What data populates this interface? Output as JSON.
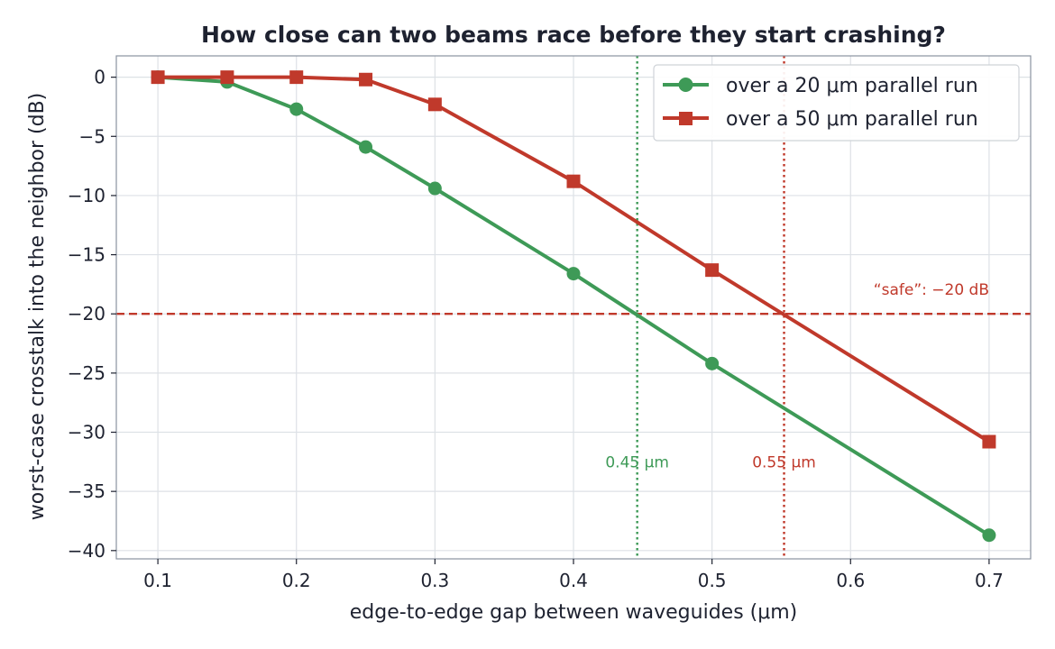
{
  "chart_data": {
    "type": "line",
    "title": "How close can two beams race before they start crashing?",
    "xlabel": "edge-to-edge gap between waveguides  (μm)",
    "ylabel": "worst-case crosstalk into the neighbor  (dB)",
    "xlim": [
      0.07,
      0.73
    ],
    "ylim": [
      -40.7,
      1.8
    ],
    "xticks": [
      0.1,
      0.2,
      0.3,
      0.4,
      0.5,
      0.6,
      0.7
    ],
    "xtick_labels": [
      "0.1",
      "0.2",
      "0.3",
      "0.4",
      "0.5",
      "0.6",
      "0.7"
    ],
    "yticks": [
      0,
      -5,
      -10,
      -15,
      -20,
      -25,
      -30,
      -35,
      -40
    ],
    "ytick_labels": [
      "0",
      "−5",
      "−10",
      "−15",
      "−20",
      "−25",
      "−30",
      "−35",
      "−40"
    ],
    "grid": true,
    "legend_position": "top-right",
    "series": [
      {
        "name": "over a 20 μm parallel run",
        "color": "#3e9a57",
        "marker": "circle",
        "x": [
          0.1,
          0.15,
          0.2,
          0.25,
          0.3,
          0.4,
          0.5,
          0.7
        ],
        "y": [
          0.0,
          -0.4,
          -2.7,
          -5.9,
          -9.4,
          -16.6,
          -24.2,
          -38.7
        ]
      },
      {
        "name": "over a 50 μm parallel run",
        "color": "#c0392b",
        "marker": "square",
        "x": [
          0.1,
          0.15,
          0.2,
          0.25,
          0.3,
          0.4,
          0.5,
          0.7
        ],
        "y": [
          0.0,
          0.0,
          0.0,
          -0.2,
          -2.3,
          -8.8,
          -16.3,
          -30.8
        ]
      }
    ],
    "reference_lines": [
      {
        "orientation": "horizontal",
        "value": -20,
        "style": "dashed",
        "color": "#c0392b",
        "label": "“safe”: −20 dB"
      },
      {
        "orientation": "vertical",
        "value": 0.446,
        "style": "dotted",
        "color": "#3e9a57",
        "label": "0.45 μm"
      },
      {
        "orientation": "vertical",
        "value": 0.552,
        "style": "dotted",
        "color": "#c0392b",
        "label": "0.55 μm"
      }
    ]
  }
}
